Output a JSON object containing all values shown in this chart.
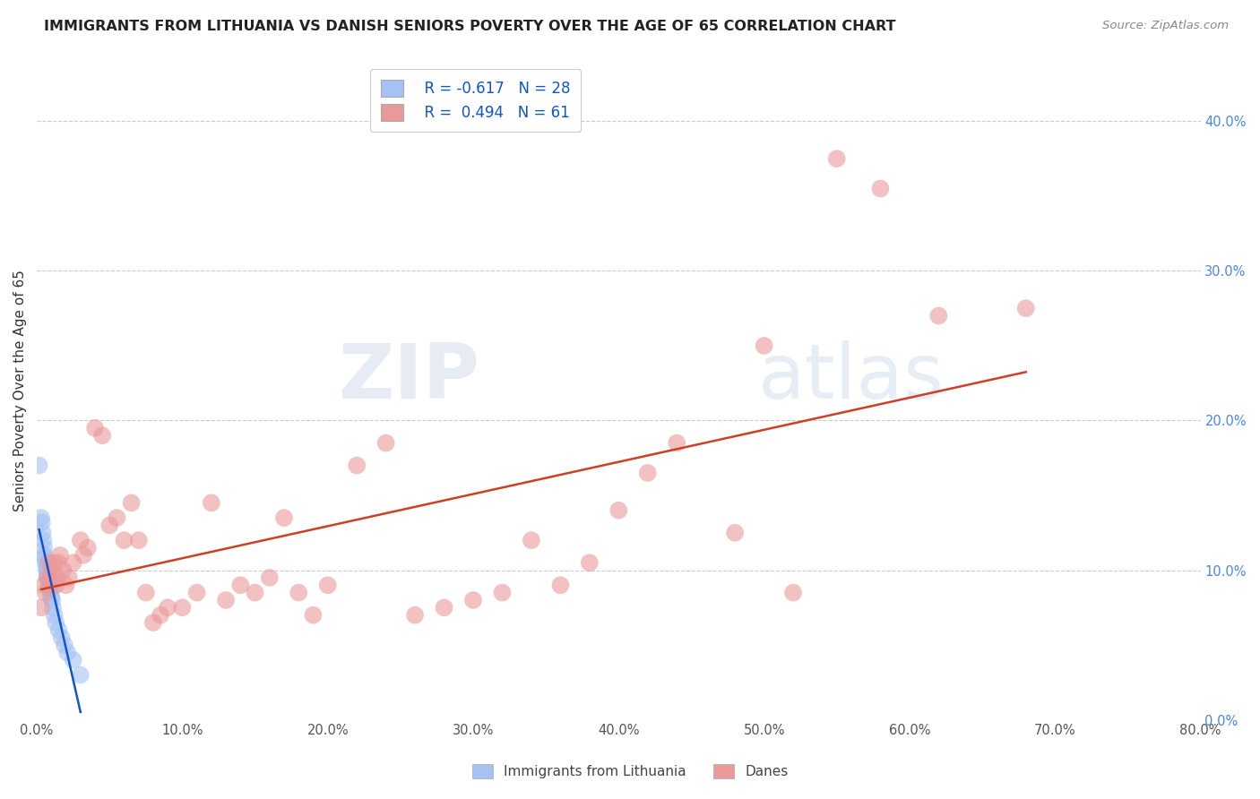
{
  "title": "IMMIGRANTS FROM LITHUANIA VS DANISH SENIORS POVERTY OVER THE AGE OF 65 CORRELATION CHART",
  "source": "Source: ZipAtlas.com",
  "ylabel": "Seniors Poverty Over the Age of 65",
  "xmin": 0,
  "xmax": 80,
  "ymin": 0,
  "ymax": 44,
  "legend_blue_r": "R = -0.617",
  "legend_blue_n": "N = 28",
  "legend_pink_r": "R =  0.494",
  "legend_pink_n": "N = 61",
  "legend_label_blue": "Immigrants from Lithuania",
  "legend_label_pink": "Danes",
  "blue_color": "#a4c2f4",
  "pink_color": "#ea9999",
  "blue_line_color": "#1155cc",
  "pink_line_color": "#cc4125",
  "blue_scatter": [
    [
      0.15,
      17.0
    ],
    [
      0.3,
      13.5
    ],
    [
      0.35,
      13.2
    ],
    [
      0.4,
      12.5
    ],
    [
      0.45,
      12.0
    ],
    [
      0.5,
      11.5
    ],
    [
      0.5,
      11.0
    ],
    [
      0.55,
      10.8
    ],
    [
      0.6,
      10.5
    ],
    [
      0.65,
      10.2
    ],
    [
      0.7,
      10.0
    ],
    [
      0.7,
      9.8
    ],
    [
      0.75,
      9.5
    ],
    [
      0.8,
      9.3
    ],
    [
      0.85,
      9.0
    ],
    [
      0.9,
      8.8
    ],
    [
      0.95,
      8.5
    ],
    [
      1.0,
      8.2
    ],
    [
      1.05,
      8.0
    ],
    [
      1.1,
      7.5
    ],
    [
      1.2,
      7.0
    ],
    [
      1.3,
      6.5
    ],
    [
      1.5,
      6.0
    ],
    [
      1.7,
      5.5
    ],
    [
      1.9,
      5.0
    ],
    [
      2.1,
      4.5
    ],
    [
      2.5,
      4.0
    ],
    [
      3.0,
      3.0
    ]
  ],
  "pink_scatter": [
    [
      0.3,
      7.5
    ],
    [
      0.5,
      9.0
    ],
    [
      0.6,
      8.5
    ],
    [
      0.7,
      9.5
    ],
    [
      0.8,
      10.5
    ],
    [
      0.9,
      9.0
    ],
    [
      1.0,
      9.5
    ],
    [
      1.1,
      10.0
    ],
    [
      1.2,
      10.5
    ],
    [
      1.3,
      9.0
    ],
    [
      1.4,
      9.5
    ],
    [
      1.5,
      10.5
    ],
    [
      1.6,
      11.0
    ],
    [
      1.8,
      10.0
    ],
    [
      2.0,
      9.0
    ],
    [
      2.2,
      9.5
    ],
    [
      2.5,
      10.5
    ],
    [
      3.0,
      12.0
    ],
    [
      3.2,
      11.0
    ],
    [
      3.5,
      11.5
    ],
    [
      4.0,
      19.5
    ],
    [
      4.5,
      19.0
    ],
    [
      5.0,
      13.0
    ],
    [
      5.5,
      13.5
    ],
    [
      6.0,
      12.0
    ],
    [
      6.5,
      14.5
    ],
    [
      7.0,
      12.0
    ],
    [
      7.5,
      8.5
    ],
    [
      8.0,
      6.5
    ],
    [
      8.5,
      7.0
    ],
    [
      9.0,
      7.5
    ],
    [
      10.0,
      7.5
    ],
    [
      11.0,
      8.5
    ],
    [
      12.0,
      14.5
    ],
    [
      13.0,
      8.0
    ],
    [
      14.0,
      9.0
    ],
    [
      15.0,
      8.5
    ],
    [
      16.0,
      9.5
    ],
    [
      17.0,
      13.5
    ],
    [
      18.0,
      8.5
    ],
    [
      19.0,
      7.0
    ],
    [
      20.0,
      9.0
    ],
    [
      22.0,
      17.0
    ],
    [
      24.0,
      18.5
    ],
    [
      26.0,
      7.0
    ],
    [
      28.0,
      7.5
    ],
    [
      30.0,
      8.0
    ],
    [
      32.0,
      8.5
    ],
    [
      34.0,
      12.0
    ],
    [
      36.0,
      9.0
    ],
    [
      38.0,
      10.5
    ],
    [
      40.0,
      14.0
    ],
    [
      42.0,
      16.5
    ],
    [
      44.0,
      18.5
    ],
    [
      48.0,
      12.5
    ],
    [
      50.0,
      25.0
    ],
    [
      52.0,
      8.5
    ],
    [
      55.0,
      37.5
    ],
    [
      58.0,
      35.5
    ],
    [
      62.0,
      27.0
    ],
    [
      68.0,
      27.5
    ]
  ],
  "watermark_zip": "ZIP",
  "watermark_atlas": "atlas",
  "right_yvals": [
    0,
    10,
    20,
    30,
    40
  ]
}
